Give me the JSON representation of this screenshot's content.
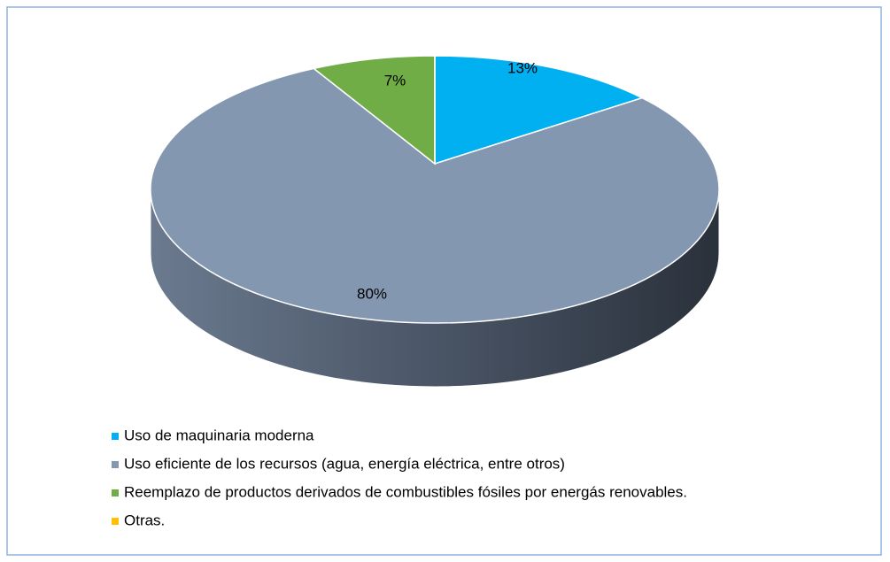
{
  "chart_data": {
    "type": "pie",
    "categories": [
      "Uso de maquinaria moderna",
      "Uso eficiente de los recursos (agua, energía eléctrica, entre otros)",
      "Reemplazo de productos derivados de combustibles fósiles por energás renovables.",
      "Otras."
    ],
    "values": [
      13,
      80,
      7,
      0
    ],
    "value_labels": [
      "13%",
      "80%",
      "7%",
      null
    ],
    "colors": [
      "#00b0f0",
      "#8497b0",
      "#70ad47",
      "#ffc000"
    ],
    "legend": "bottom"
  }
}
